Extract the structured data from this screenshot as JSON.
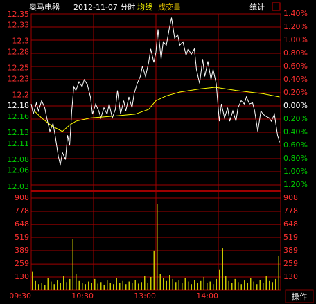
{
  "header": {
    "name": "奥马电器",
    "date": "2012-11-07 分时",
    "stats": "统计"
  },
  "footer": {
    "action": "操作"
  },
  "chart_data": [
    {
      "type": "line",
      "grid": true,
      "xlim": [
        0,
        240
      ],
      "xticks": [
        {
          "value": 0,
          "label": "09:30"
        },
        {
          "value": 60,
          "label": "10:30"
        },
        {
          "value": 120,
          "label": "13:00"
        },
        {
          "value": 180,
          "label": "14:00"
        }
      ],
      "ylim": [
        12.034,
        12.351
      ],
      "yticks": [
        12.35,
        12.33,
        12.3,
        12.28,
        12.25,
        12.23,
        12.2,
        12.18,
        12.16,
        12.13,
        12.11,
        12.08,
        12.06,
        12.03
      ],
      "y2lim": [
        -1.2,
        1.4
      ],
      "y2ticks": [
        {
          "value": 1.4,
          "label": "1.40%"
        },
        {
          "value": 1.2,
          "label": "1.20%"
        },
        {
          "value": 1.0,
          "label": "1.00%"
        },
        {
          "value": 0.8,
          "label": "0.80%"
        },
        {
          "value": 0.6,
          "label": "0.60%"
        },
        {
          "value": 0.4,
          "label": "0.40%"
        },
        {
          "value": 0.2,
          "label": "0.20%"
        },
        {
          "value": 0,
          "label": "0.00%"
        },
        {
          "value": -0.2,
          "label": "0.20%"
        },
        {
          "value": -0.4,
          "label": "0.40%"
        },
        {
          "value": -0.6,
          "label": "0.60%"
        },
        {
          "value": -0.8,
          "label": "0.80%"
        },
        {
          "value": -1.0,
          "label": "1.00%"
        },
        {
          "value": -1.2,
          "label": "1.20%"
        }
      ],
      "series": [
        {
          "color": "#ffffff",
          "x": [
            0,
            2,
            5,
            7,
            10,
            13,
            15,
            18,
            21,
            23,
            26,
            28,
            30,
            33,
            35,
            37,
            39,
            41,
            43,
            46,
            49,
            51,
            54,
            57,
            59,
            62,
            65,
            67,
            70,
            73,
            75,
            78,
            81,
            83,
            86,
            89,
            91,
            94,
            97,
            99,
            102,
            105,
            107,
            110,
            113,
            115,
            118,
            120,
            122,
            125,
            127,
            130,
            133,
            135,
            138,
            141,
            143,
            146,
            149,
            151,
            154,
            157,
            159,
            162,
            165,
            167,
            170,
            173,
            175,
            178,
            181,
            183,
            186,
            189,
            191,
            194,
            197,
            199,
            202,
            205,
            207,
            210,
            213,
            215,
            218,
            221,
            223,
            226,
            229,
            231,
            234,
            237,
            239
          ],
          "values": [
            12.184,
            12.165,
            12.186,
            12.171,
            12.19,
            12.177,
            12.158,
            12.133,
            12.148,
            12.126,
            12.088,
            12.071,
            12.094,
            12.081,
            12.126,
            12.107,
            12.171,
            12.216,
            12.209,
            12.225,
            12.216,
            12.229,
            12.22,
            12.197,
            12.165,
            12.184,
            12.171,
            12.158,
            12.177,
            12.165,
            12.184,
            12.158,
            12.174,
            12.209,
            12.165,
            12.19,
            12.171,
            12.197,
            12.177,
            12.203,
            12.222,
            12.235,
            12.254,
            12.235,
            12.261,
            12.286,
            12.261,
            12.28,
            12.322,
            12.267,
            12.299,
            12.293,
            12.325,
            12.344,
            12.306,
            12.312,
            12.293,
            12.299,
            12.274,
            12.286,
            12.276,
            12.286,
            12.248,
            12.222,
            12.267,
            12.235,
            12.263,
            12.229,
            12.248,
            12.222,
            12.152,
            12.184,
            12.158,
            12.177,
            12.152,
            12.171,
            12.152,
            12.177,
            12.19,
            12.184,
            12.197,
            12.184,
            12.186,
            12.171,
            12.133,
            12.171,
            12.165,
            12.161,
            12.158,
            12.152,
            12.165,
            12.126,
            12.113
          ]
        },
        {
          "name": "均线",
          "color": "#ffff00",
          "x": [
            3,
            10,
            20,
            30,
            37,
            43,
            57,
            77,
            100,
            113,
            120,
            130,
            143,
            163,
            177,
            197,
            223,
            239
          ],
          "values": [
            12.171,
            12.158,
            12.143,
            12.133,
            12.145,
            12.152,
            12.158,
            12.161,
            12.165,
            12.174,
            12.19,
            12.199,
            12.206,
            12.212,
            12.215,
            12.209,
            12.203,
            12.197
          ]
        }
      ]
    },
    {
      "type": "bar",
      "name": "成交量",
      "color": "#c8c800",
      "xlim": [
        0,
        240
      ],
      "ylim": [
        0,
        908
      ],
      "yticks": [
        908,
        778,
        648,
        519,
        389,
        259,
        130
      ],
      "x": [
        0,
        3,
        6,
        9,
        12,
        15,
        18,
        21,
        24,
        27,
        30,
        33,
        36,
        39,
        42,
        45,
        48,
        51,
        54,
        57,
        60,
        63,
        66,
        69,
        72,
        75,
        78,
        81,
        84,
        87,
        90,
        93,
        96,
        99,
        102,
        105,
        108,
        111,
        114,
        117,
        120,
        123,
        126,
        129,
        132,
        135,
        138,
        141,
        144,
        147,
        150,
        153,
        156,
        159,
        162,
        165,
        168,
        171,
        174,
        177,
        180,
        183,
        186,
        189,
        192,
        195,
        198,
        201,
        204,
        207,
        210,
        213,
        216,
        219,
        222,
        225,
        228,
        231,
        234,
        237
      ],
      "values": [
        180,
        90,
        60,
        75,
        50,
        120,
        85,
        60,
        95,
        70,
        140,
        80,
        110,
        505,
        160,
        90,
        75,
        60,
        85,
        70,
        110,
        65,
        80,
        55,
        95,
        70,
        60,
        120,
        75,
        90,
        60,
        85,
        70,
        100,
        65,
        80,
        140,
        75,
        130,
        390,
        850,
        160,
        120,
        90,
        150,
        110,
        80,
        95,
        70,
        120,
        85,
        60,
        100,
        75,
        90,
        130,
        70,
        85,
        60,
        110,
        200,
        416,
        140,
        90,
        75,
        110,
        80,
        60,
        95,
        70,
        120,
        85,
        60,
        100,
        75,
        140,
        90,
        80,
        110,
        335
      ]
    }
  ]
}
